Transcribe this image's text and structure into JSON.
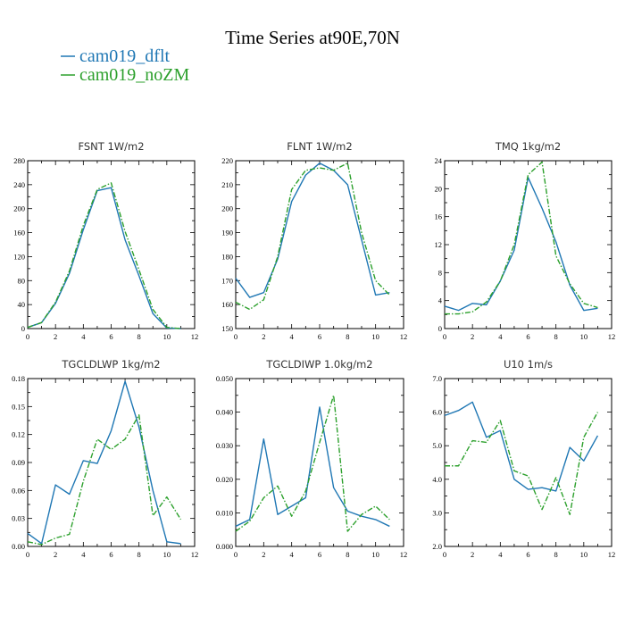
{
  "figure": {
    "title": "Time Series at90E,70N",
    "legend": [
      {
        "label": "cam019_dflt",
        "color": "#1f77b4",
        "dash": "solid"
      },
      {
        "label": "cam019_noZM",
        "color": "#2ca02c",
        "dash": "dashdot"
      }
    ]
  },
  "chart_data": [
    {
      "type": "line",
      "var": "FSNT",
      "units": "1W/m2",
      "xlim": [
        0,
        12
      ],
      "xticks": [
        0,
        2,
        4,
        6,
        8,
        10,
        12
      ],
      "ylim": [
        0,
        280
      ],
      "yticks": [
        0,
        40,
        80,
        120,
        160,
        200,
        240,
        280
      ],
      "ytick_labels": [
        "0",
        "40",
        "80",
        "120",
        "160",
        "200",
        "240",
        "280"
      ],
      "x": [
        0,
        1,
        2,
        3,
        4,
        5,
        6,
        7,
        8,
        9,
        10,
        11
      ],
      "series": [
        {
          "name": "cam019_dflt",
          "values": [
            2,
            10,
            42,
            92,
            165,
            230,
            235,
            148,
            88,
            25,
            1,
            0
          ]
        },
        {
          "name": "cam019_noZM",
          "values": [
            2,
            10,
            44,
            96,
            172,
            232,
            243,
            162,
            98,
            32,
            2,
            0
          ]
        }
      ]
    },
    {
      "type": "line",
      "var": "FLNT",
      "units": "1W/m2",
      "xlim": [
        0,
        12
      ],
      "xticks": [
        0,
        2,
        4,
        6,
        8,
        10,
        12
      ],
      "ylim": [
        150,
        220
      ],
      "yticks": [
        150,
        160,
        170,
        180,
        190,
        200,
        210,
        220
      ],
      "ytick_labels": [
        "150",
        "160",
        "170",
        "180",
        "190",
        "200",
        "210",
        "220"
      ],
      "x": [
        0,
        1,
        2,
        3,
        4,
        5,
        6,
        7,
        8,
        9,
        10,
        11
      ],
      "series": [
        {
          "name": "cam019_dflt",
          "values": [
            171,
            163,
            165,
            179,
            203,
            214,
            219,
            216,
            210,
            187,
            164,
            165
          ]
        },
        {
          "name": "cam019_noZM",
          "values": [
            161,
            158,
            162,
            180,
            208,
            216,
            217,
            216,
            219,
            190,
            170,
            164
          ]
        }
      ]
    },
    {
      "type": "line",
      "var": "TMQ",
      "units": "1kg/m2",
      "xlim": [
        0,
        12
      ],
      "xticks": [
        0,
        2,
        4,
        6,
        8,
        10,
        12
      ],
      "ylim": [
        0,
        24
      ],
      "yticks": [
        0,
        4,
        8,
        12,
        16,
        20,
        24
      ],
      "ytick_labels": [
        "0",
        "4",
        "8",
        "12",
        "16",
        "20",
        "24"
      ],
      "x": [
        0,
        1,
        2,
        3,
        4,
        5,
        6,
        7,
        8,
        9,
        10,
        11
      ],
      "series": [
        {
          "name": "cam019_dflt",
          "values": [
            3.2,
            2.6,
            3.6,
            3.4,
            6.8,
            11.2,
            21.6,
            17.2,
            12.4,
            6.2,
            2.6,
            2.9
          ]
        },
        {
          "name": "cam019_noZM",
          "values": [
            2.1,
            2.1,
            2.4,
            3.8,
            6.8,
            12.0,
            22.0,
            23.8,
            10.4,
            6.4,
            3.6,
            3.0
          ]
        }
      ]
    },
    {
      "type": "line",
      "var": "TGCLDLWP",
      "units": "1kg/m2",
      "xlim": [
        0,
        12
      ],
      "xticks": [
        0,
        2,
        4,
        6,
        8,
        10,
        12
      ],
      "ylim": [
        0,
        0.18
      ],
      "yticks": [
        0,
        0.03,
        0.06,
        0.09,
        0.12,
        0.15,
        0.18
      ],
      "ytick_labels": [
        "0.00",
        "0.03",
        "0.06",
        "0.09",
        "0.12",
        "0.15",
        "0.18"
      ],
      "x": [
        0,
        1,
        2,
        3,
        4,
        5,
        6,
        7,
        8,
        9,
        10,
        11
      ],
      "series": [
        {
          "name": "cam019_dflt",
          "values": [
            0.014,
            0.003,
            0.066,
            0.056,
            0.092,
            0.089,
            0.124,
            0.177,
            0.128,
            0.06,
            0.005,
            0.003
          ]
        },
        {
          "name": "cam019_noZM",
          "values": [
            0.005,
            0.002,
            0.009,
            0.013,
            0.07,
            0.115,
            0.104,
            0.115,
            0.141,
            0.033,
            0.053,
            0.029
          ]
        }
      ]
    },
    {
      "type": "line",
      "var": "TGCLDIWP",
      "units": "1.0kg/m2",
      "xlim": [
        0,
        12
      ],
      "xticks": [
        0,
        2,
        4,
        6,
        8,
        10,
        12
      ],
      "ylim": [
        0,
        0.05
      ],
      "yticks": [
        0,
        0.01,
        0.02,
        0.03,
        0.04,
        0.05
      ],
      "ytick_labels": [
        "0.000",
        "0.010",
        "0.020",
        "0.030",
        "0.040",
        "0.050"
      ],
      "x": [
        0,
        1,
        2,
        3,
        4,
        5,
        6,
        7,
        8,
        9,
        10,
        11
      ],
      "series": [
        {
          "name": "cam019_dflt",
          "values": [
            0.006,
            0.008,
            0.032,
            0.0095,
            0.012,
            0.0145,
            0.0415,
            0.0175,
            0.0105,
            0.009,
            0.008,
            0.006
          ]
        },
        {
          "name": "cam019_noZM",
          "values": [
            0.0045,
            0.0075,
            0.0145,
            0.018,
            0.009,
            0.0165,
            0.031,
            0.045,
            0.0045,
            0.0095,
            0.012,
            0.008
          ]
        }
      ]
    },
    {
      "type": "line",
      "var": "U10",
      "units": "1m/s",
      "xlim": [
        0,
        12
      ],
      "xticks": [
        0,
        2,
        4,
        6,
        8,
        10,
        12
      ],
      "ylim": [
        2,
        7
      ],
      "yticks": [
        2,
        3,
        4,
        5,
        6,
        7
      ],
      "ytick_labels": [
        "2.0",
        "3.0",
        "4.0",
        "5.0",
        "6.0",
        "7.0"
      ],
      "x": [
        0,
        1,
        2,
        3,
        4,
        5,
        6,
        7,
        8,
        9,
        10,
        11
      ],
      "series": [
        {
          "name": "cam019_dflt",
          "values": [
            5.9,
            6.05,
            6.3,
            5.25,
            5.45,
            4.0,
            3.7,
            3.75,
            3.65,
            4.95,
            4.55,
            5.3
          ]
        },
        {
          "name": "cam019_noZM",
          "values": [
            4.4,
            4.4,
            5.15,
            5.1,
            5.75,
            4.25,
            4.1,
            3.1,
            4.05,
            2.95,
            5.25,
            6.0
          ]
        }
      ]
    }
  ]
}
